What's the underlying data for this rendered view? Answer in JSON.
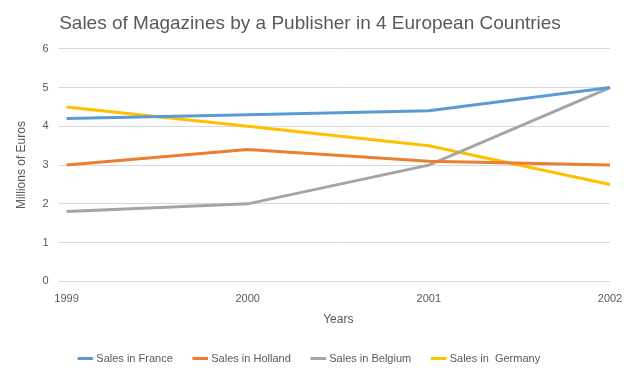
{
  "chart_data": {
    "type": "line",
    "title": "Sales of Magazines by a Publisher in 4 European Countries",
    "x_label": "Years",
    "y_label": "Millions of Euros",
    "categories": [
      "1999",
      "2000",
      "2001",
      "2002"
    ],
    "series": [
      {
        "name": "Sales in France",
        "color": "#5b9bd5",
        "values": [
          4.2,
          4.3,
          4.4,
          5.0
        ]
      },
      {
        "name": "Sales in Holland",
        "color": "#ed7d31",
        "values": [
          3.0,
          3.4,
          3.1,
          3.0
        ]
      },
      {
        "name": "Sales in Belgium",
        "color": "#a5a5a5",
        "values": [
          1.8,
          2.0,
          3.0,
          5.0
        ]
      },
      {
        "name": "Sales in  Germany",
        "color": "#ffc000",
        "values": [
          4.5,
          4.0,
          3.5,
          2.5
        ]
      }
    ],
    "ylim": [
      0,
      6
    ],
    "yticks": [
      0,
      1,
      2,
      3,
      4,
      5,
      6
    ],
    "grid": true,
    "legend": "bottom"
  }
}
